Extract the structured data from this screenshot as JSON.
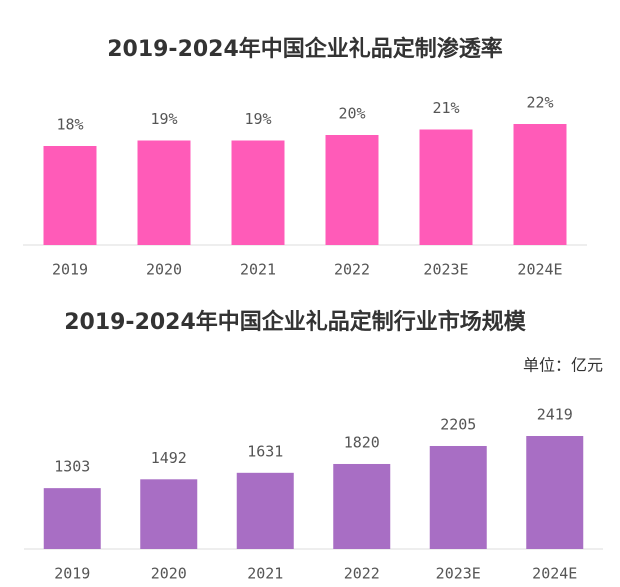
{
  "chart_data": [
    {
      "type": "bar",
      "title": "2019-2024年中国企业礼品定制渗透率",
      "categories": [
        "2019",
        "2020",
        "2021",
        "2022",
        "2023E",
        "2024E"
      ],
      "values": [
        18,
        19,
        19,
        20,
        21,
        22
      ],
      "value_labels": [
        "18%",
        "19%",
        "19%",
        "20%",
        "21%",
        "22%"
      ],
      "color": "#ff5bb8"
    },
    {
      "type": "bar",
      "title": "2019-2024年中国企业礼品定制行业市场规模",
      "unit_label": "单位：亿元",
      "categories": [
        "2019",
        "2020",
        "2021",
        "2022",
        "2023E",
        "2024E"
      ],
      "values": [
        1303,
        1492,
        1631,
        1820,
        2205,
        2419
      ],
      "color": "#a86ec4"
    }
  ]
}
